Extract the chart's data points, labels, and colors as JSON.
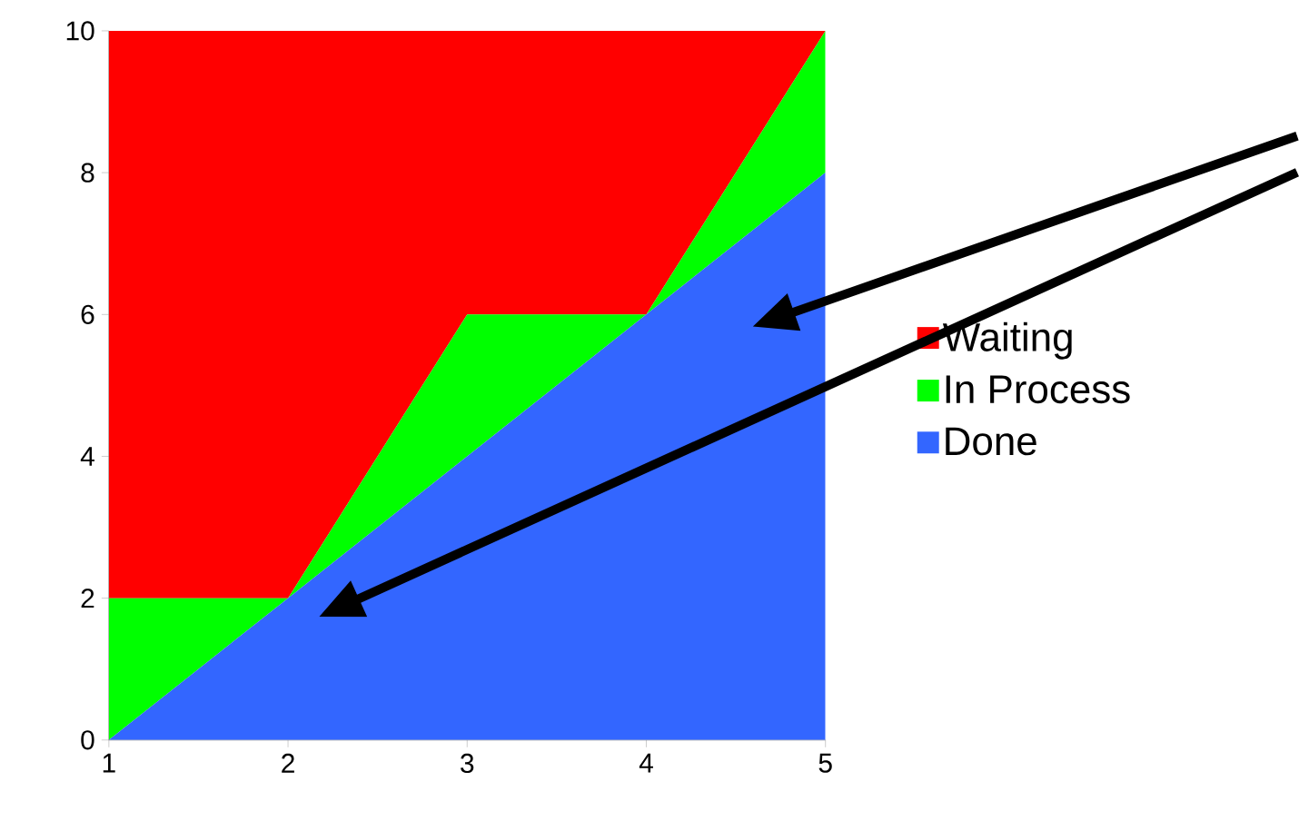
{
  "chart_data": {
    "type": "area",
    "stacked": true,
    "x": [
      1,
      2,
      3,
      4,
      5
    ],
    "series": [
      {
        "name": "Done",
        "color": "#3366ff",
        "values": [
          0,
          2,
          4,
          6,
          8
        ]
      },
      {
        "name": "In Process",
        "color": "#00ff00",
        "values": [
          2,
          0,
          2,
          0,
          2
        ]
      },
      {
        "name": "Waiting",
        "color": "#ff0000",
        "values": [
          8,
          8,
          4,
          4,
          0
        ]
      }
    ],
    "xlim": [
      1,
      5
    ],
    "xticks": [
      1,
      2,
      3,
      4,
      5
    ],
    "ylim": [
      0,
      10
    ],
    "yticks": [
      0,
      2,
      4,
      6,
      8,
      10
    ],
    "grid": false,
    "legend": "right"
  }
}
